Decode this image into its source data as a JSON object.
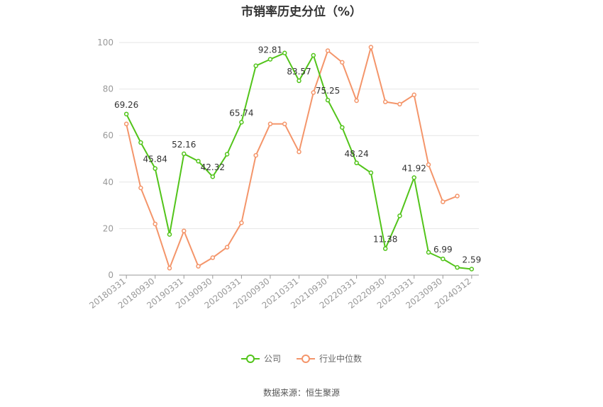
{
  "chart_data": {
    "type": "line",
    "title": "市销率历史分位（%）",
    "source": "数据来源：恒生聚源",
    "ylim": [
      0,
      100
    ],
    "yticks": [
      0,
      20,
      40,
      60,
      80,
      100
    ],
    "x_tick_labels": [
      "20180331",
      "20180930",
      "20190331",
      "20190930",
      "20200331",
      "20200930",
      "20210331",
      "20210930",
      "20220331",
      "20220930",
      "20230331",
      "20230930",
      "20240312"
    ],
    "categories": [
      "20180331",
      "20180630",
      "20180930",
      "20181231",
      "20190331",
      "20190630",
      "20190930",
      "20191231",
      "20200331",
      "20200630",
      "20200930",
      "20201231",
      "20210331",
      "20210630",
      "20210930",
      "20211231",
      "20220331",
      "20220630",
      "20220930",
      "20221231",
      "20230331",
      "20230630",
      "20230930",
      "20231231",
      "20240312"
    ],
    "grid": true,
    "legend_position": "bottom",
    "series": [
      {
        "name": "公司",
        "color": "#52c41a",
        "values": [
          69.26,
          57.0,
          45.84,
          17.5,
          52.16,
          49.0,
          42.32,
          52.0,
          65.74,
          90.0,
          92.81,
          95.5,
          83.57,
          94.5,
          75.25,
          63.5,
          48.24,
          44.0,
          11.38,
          25.5,
          41.92,
          9.8,
          6.99,
          3.3,
          2.59
        ],
        "labels": {
          "0": "69.26",
          "2": "45.84",
          "4": "52.16",
          "6": "42.32",
          "8": "65.74",
          "10": "92.81",
          "12": "83.57",
          "14": "75.25",
          "16": "48.24",
          "18": "11.38",
          "20": "41.92",
          "22": "6.99",
          "24": "2.59"
        }
      },
      {
        "name": "行业中位数",
        "color": "#f4956a",
        "values": [
          65.0,
          37.5,
          22.0,
          3.0,
          19.0,
          3.8,
          7.5,
          12.0,
          22.5,
          51.5,
          65.0,
          65.0,
          53.0,
          78.5,
          96.5,
          91.5,
          75.0,
          98.0,
          74.5,
          73.5,
          77.5,
          47.5,
          31.5,
          34.0,
          null
        ]
      }
    ]
  }
}
